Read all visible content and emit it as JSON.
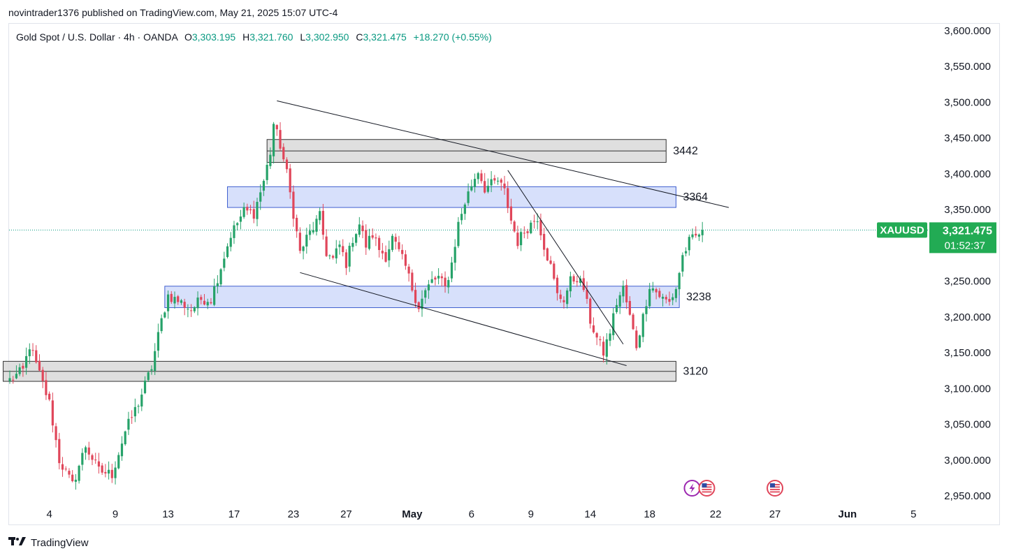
{
  "header": {
    "publish_line": "novintrader1376 published on TradingView.com, May 21, 2025 15:07 UTC-4"
  },
  "legend": {
    "symbol_desc": "Gold Spot / U.S. Dollar · 4h · OANDA",
    "o_label": "O",
    "o_value": "3,303.195",
    "h_label": "H",
    "h_value": "3,321.760",
    "l_label": "L",
    "l_value": "3,302.950",
    "c_label": "C",
    "c_value": "3,321.475",
    "change": "+18.270 (+0.55%)"
  },
  "footer": {
    "brand": "TradingView"
  },
  "colors": {
    "up": "#26a269",
    "down": "#e0465a",
    "accent_green": "#089981",
    "price_tag": "#22ab54",
    "zone_blue_fill": "#d3ddfb",
    "zone_blue_stroke": "#3f5fcf",
    "zone_gray_fill": "#d9d9d9",
    "zone_gray_stroke": "#333333"
  },
  "chart_data": {
    "type": "candlestick",
    "symbol": "XAUUSD",
    "timeframe": "4h",
    "y_range": [
      2950,
      3600
    ],
    "y_ticks": [
      {
        "v": 3600,
        "t": "3,600.000"
      },
      {
        "v": 3550,
        "t": "3,550.000"
      },
      {
        "v": 3500,
        "t": "3,500.000"
      },
      {
        "v": 3450,
        "t": "3,450.000"
      },
      {
        "v": 3400,
        "t": "3,400.000"
      },
      {
        "v": 3350,
        "t": "3,350.000"
      },
      {
        "v": 3250,
        "t": "3,250.000"
      },
      {
        "v": 3200,
        "t": "3,200.000"
      },
      {
        "v": 3150,
        "t": "3,150.000"
      },
      {
        "v": 3100,
        "t": "3,100.000"
      },
      {
        "v": 3050,
        "t": "3,050.000"
      },
      {
        "v": 3000,
        "t": "3,000.000"
      },
      {
        "v": 2950,
        "t": "2,950.000"
      }
    ],
    "x_labels": [
      {
        "t": "4",
        "i": 12
      },
      {
        "t": "9",
        "i": 32
      },
      {
        "t": "13",
        "i": 48
      },
      {
        "t": "17",
        "i": 68
      },
      {
        "t": "23",
        "i": 86
      },
      {
        "t": "27",
        "i": 102
      },
      {
        "t": "May",
        "i": 122,
        "bold": true
      },
      {
        "t": "6",
        "i": 140
      },
      {
        "t": "9",
        "i": 158
      },
      {
        "t": "14",
        "i": 176
      },
      {
        "t": "18",
        "i": 194
      },
      {
        "t": "22",
        "i": 214
      },
      {
        "t": "27",
        "i": 232
      },
      {
        "t": "Jun",
        "i": 254,
        "bold": true
      },
      {
        "t": "5",
        "i": 274
      }
    ],
    "anchors": [
      [
        0,
        3112
      ],
      [
        4,
        3125
      ],
      [
        6,
        3160
      ],
      [
        9,
        3120
      ],
      [
        12,
        3080
      ],
      [
        15,
        3000
      ],
      [
        19,
        2965
      ],
      [
        23,
        3020
      ],
      [
        27,
        2985
      ],
      [
        31,
        2980
      ],
      [
        35,
        3040
      ],
      [
        39,
        3080
      ],
      [
        43,
        3130
      ],
      [
        46,
        3195
      ],
      [
        48,
        3230
      ],
      [
        52,
        3220
      ],
      [
        55,
        3210
      ],
      [
        58,
        3225
      ],
      [
        61,
        3225
      ],
      [
        64,
        3270
      ],
      [
        67,
        3315
      ],
      [
        71,
        3348
      ],
      [
        74,
        3345
      ],
      [
        77,
        3390
      ],
      [
        79,
        3430
      ],
      [
        80,
        3470
      ],
      [
        82,
        3440
      ],
      [
        84,
        3400
      ],
      [
        86,
        3345
      ],
      [
        88,
        3290
      ],
      [
        90,
        3310
      ],
      [
        92,
        3325
      ],
      [
        94,
        3340
      ],
      [
        96,
        3290
      ],
      [
        98,
        3280
      ],
      [
        100,
        3300
      ],
      [
        102,
        3275
      ],
      [
        104,
        3310
      ],
      [
        106,
        3330
      ],
      [
        108,
        3300
      ],
      [
        110,
        3315
      ],
      [
        112,
        3295
      ],
      [
        114,
        3285
      ],
      [
        116,
        3310
      ],
      [
        118,
        3290
      ],
      [
        120,
        3270
      ],
      [
        122,
        3240
      ],
      [
        124,
        3215
      ],
      [
        126,
        3235
      ],
      [
        128,
        3250
      ],
      [
        130,
        3255
      ],
      [
        132,
        3240
      ],
      [
        134,
        3275
      ],
      [
        136,
        3330
      ],
      [
        138,
        3360
      ],
      [
        140,
        3385
      ],
      [
        142,
        3405
      ],
      [
        144,
        3380
      ],
      [
        146,
        3385
      ],
      [
        148,
        3390
      ],
      [
        150,
        3375
      ],
      [
        152,
        3335
      ],
      [
        154,
        3305
      ],
      [
        156,
        3320
      ],
      [
        158,
        3330
      ],
      [
        160,
        3340
      ],
      [
        162,
        3300
      ],
      [
        164,
        3270
      ],
      [
        166,
        3230
      ],
      [
        168,
        3225
      ],
      [
        170,
        3250
      ],
      [
        172,
        3255
      ],
      [
        174,
        3240
      ],
      [
        176,
        3195
      ],
      [
        178,
        3170
      ],
      [
        180,
        3150
      ],
      [
        182,
        3180
      ],
      [
        184,
        3220
      ],
      [
        186,
        3240
      ],
      [
        188,
        3200
      ],
      [
        190,
        3160
      ],
      [
        192,
        3200
      ],
      [
        194,
        3245
      ],
      [
        196,
        3235
      ],
      [
        198,
        3225
      ],
      [
        200,
        3220
      ],
      [
        202,
        3240
      ],
      [
        204,
        3285
      ],
      [
        206,
        3305
      ],
      [
        208,
        3312
      ],
      [
        210,
        3321.475
      ]
    ],
    "zones": [
      {
        "type": "gray",
        "label": "3442",
        "i1": 78,
        "i2": 199,
        "top": 3448,
        "bottom": 3416,
        "mid": 3432
      },
      {
        "type": "blue",
        "label": "3364",
        "i1": 66,
        "i2": 202,
        "top": 3382,
        "bottom": 3353
      },
      {
        "type": "blue",
        "label": "3238",
        "i1": 47,
        "i2": 203,
        "top": 3243,
        "bottom": 3213
      },
      {
        "type": "gray",
        "label": "3120",
        "i1": -2,
        "i2": 202,
        "top": 3138,
        "bottom": 3110,
        "mid": 3124
      }
    ],
    "trendlines": [
      {
        "i1": 81,
        "v1": 3502,
        "i2": 218,
        "v2": 3353
      },
      {
        "i1": 88,
        "v1": 3262,
        "i2": 187,
        "v2": 3132
      },
      {
        "i1": 151,
        "v1": 3405,
        "i2": 186,
        "v2": 3162
      }
    ],
    "last_price": {
      "symbol": "XAUUSD",
      "price": "3,321.475",
      "countdown": "01:52:37",
      "value": 3321.475
    },
    "event_icons": [
      {
        "i": 209,
        "kind": "lightning-flag"
      },
      {
        "i": 232,
        "kind": "us-flag"
      }
    ]
  }
}
